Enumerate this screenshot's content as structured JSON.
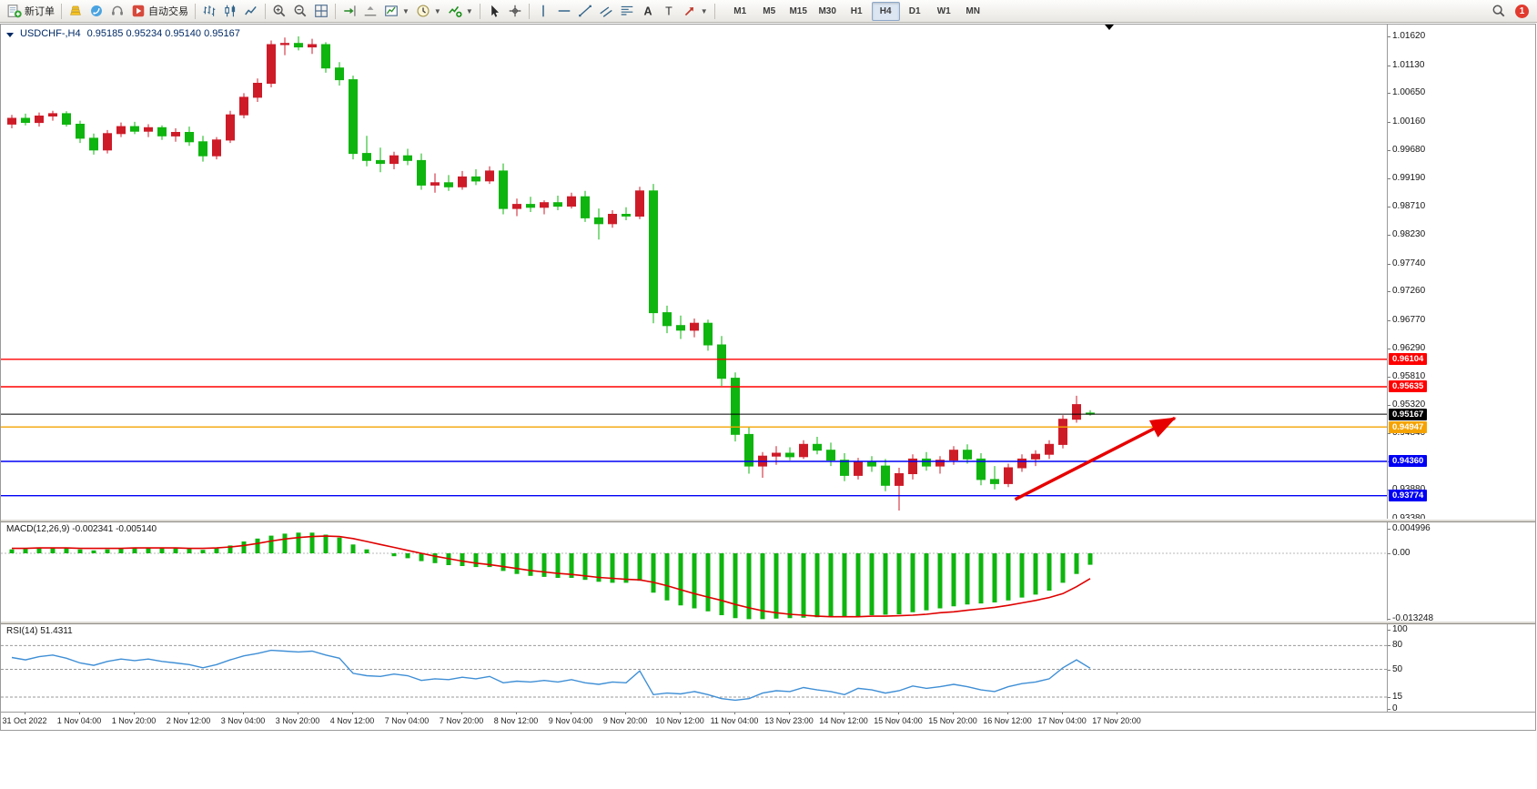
{
  "window": {
    "symbol": "USDCHF-,H4",
    "ohlc": "0.95185 0.95234 0.95140 0.95167"
  },
  "toolbar": {
    "buttons": [
      {
        "name": "new-order",
        "label": "新订单",
        "icon": "new-order-icon"
      },
      {
        "sep": true
      },
      {
        "name": "market",
        "icon": "market-icon"
      },
      {
        "name": "signals",
        "icon": "signals-icon"
      },
      {
        "name": "support",
        "icon": "support-icon"
      },
      {
        "name": "auto-trading",
        "label": "自动交易",
        "icon": "autotrading-icon"
      },
      {
        "sep": true
      },
      {
        "name": "bar-chart",
        "icon": "bar-chart-icon"
      },
      {
        "name": "candlestick-chart",
        "icon": "candlestick-icon"
      },
      {
        "name": "line-chart",
        "icon": "line-chart-icon"
      },
      {
        "sep": true
      },
      {
        "name": "zoom-in",
        "icon": "zoom-in-icon"
      },
      {
        "name": "zoom-out",
        "icon": "zoom-out-icon"
      },
      {
        "name": "tile-windows",
        "icon": "tile-windows-icon"
      },
      {
        "sep": true
      },
      {
        "name": "auto-scroll",
        "icon": "auto-scroll-icon"
      },
      {
        "name": "chart-shift",
        "icon": "chart-shift-icon"
      },
      {
        "name": "new-chart",
        "icon": "new-chart-icon",
        "dropdown": true
      },
      {
        "name": "timeframes-menu",
        "icon": "clock-icon",
        "dropdown": true
      },
      {
        "name": "indicators",
        "icon": "indicators-icon",
        "dropdown": true
      },
      {
        "sep": true
      },
      {
        "name": "cursor",
        "icon": "cursor-icon"
      },
      {
        "name": "crosshair",
        "icon": "crosshair-icon"
      },
      {
        "sep": true
      },
      {
        "name": "vertical-line",
        "icon": "vertical-line-icon"
      },
      {
        "name": "horizontal-line",
        "icon": "horizontal-line-icon"
      },
      {
        "name": "trendline",
        "icon": "trendline-icon"
      },
      {
        "name": "equidistant-channel",
        "icon": "channel-icon"
      },
      {
        "name": "fibonacci",
        "icon": "fibonacci-icon"
      },
      {
        "name": "text",
        "icon": "text-icon"
      },
      {
        "name": "text-label",
        "icon": "text-label-icon"
      },
      {
        "name": "arrows",
        "icon": "arrows-icon",
        "dropdown": true
      },
      {
        "sep": true
      }
    ],
    "timeframes": [
      "M1",
      "M5",
      "M15",
      "M30",
      "H1",
      "H4",
      "D1",
      "W1",
      "MN"
    ],
    "active_timeframe": "H4",
    "notification_count": "1"
  },
  "indicators": {
    "macd_label": "MACD(12,26,9) -0.002341 -0.005140",
    "rsi_label": "RSI(14) 51.4311"
  },
  "chart_data": {
    "type": "candlestick",
    "symbol": "USDCHF",
    "timeframe": "H4",
    "title": "USDCHF-,H4 0.95185 0.95234 0.95140 0.95167",
    "price_range": [
      0.9338,
      1.0162
    ],
    "up_color": "#ce1b28",
    "down_color": "#0eb50e",
    "candles": [
      [
        1.0012,
        1.0028,
        1.0005,
        1.0022
      ],
      [
        1.0022,
        1.003,
        1.001,
        1.0015
      ],
      [
        1.0015,
        1.0032,
        1.0008,
        1.0026
      ],
      [
        1.0026,
        1.0035,
        1.0018,
        1.003
      ],
      [
        1.003,
        1.0034,
        1.0008,
        1.0012
      ],
      [
        1.0012,
        1.0018,
        0.998,
        0.9988
      ],
      [
        0.9988,
        0.9996,
        0.996,
        0.9968
      ],
      [
        0.9968,
        1.0002,
        0.9962,
        0.9996
      ],
      [
        0.9996,
        1.0015,
        0.999,
        1.0008
      ],
      [
        1.0008,
        1.0016,
        0.9995,
        1.0
      ],
      [
        1.0,
        1.0012,
        0.999,
        1.0006
      ],
      [
        1.0006,
        1.001,
        0.9985,
        0.9992
      ],
      [
        0.9992,
        1.0005,
        0.9982,
        0.9998
      ],
      [
        0.9998,
        1.0008,
        0.9975,
        0.9982
      ],
      [
        0.9982,
        0.9992,
        0.9948,
        0.9958
      ],
      [
        0.9958,
        0.999,
        0.9952,
        0.9985
      ],
      [
        0.9985,
        1.0035,
        0.998,
        1.0028
      ],
      [
        1.0028,
        1.0065,
        1.0022,
        1.0058
      ],
      [
        1.0058,
        1.009,
        1.005,
        1.0082
      ],
      [
        1.0082,
        1.0155,
        1.0075,
        1.0148
      ],
      [
        1.0148,
        1.016,
        1.013,
        1.015
      ],
      [
        1.015,
        1.0162,
        1.0138,
        1.0144
      ],
      [
        1.0144,
        1.0158,
        1.0132,
        1.0148
      ],
      [
        1.0148,
        1.0152,
        1.01,
        1.0108
      ],
      [
        1.0108,
        1.0118,
        1.0078,
        1.0088
      ],
      [
        1.0088,
        1.0095,
        0.9952,
        0.9962
      ],
      [
        0.9962,
        0.9992,
        0.994,
        0.995
      ],
      [
        0.995,
        0.9972,
        0.993,
        0.9945
      ],
      [
        0.9945,
        0.9965,
        0.9935,
        0.9958
      ],
      [
        0.9958,
        0.997,
        0.9942,
        0.995
      ],
      [
        0.995,
        0.9962,
        0.99,
        0.9908
      ],
      [
        0.9908,
        0.9928,
        0.9895,
        0.9912
      ],
      [
        0.9912,
        0.9925,
        0.9898,
        0.9905
      ],
      [
        0.9905,
        0.9932,
        0.99,
        0.9922
      ],
      [
        0.9922,
        0.9935,
        0.9908,
        0.9915
      ],
      [
        0.9915,
        0.994,
        0.991,
        0.9932
      ],
      [
        0.9932,
        0.9945,
        0.9858,
        0.9868
      ],
      [
        0.9868,
        0.9885,
        0.9855,
        0.9875
      ],
      [
        0.9875,
        0.9888,
        0.9862,
        0.987
      ],
      [
        0.987,
        0.9882,
        0.9858,
        0.9878
      ],
      [
        0.9878,
        0.989,
        0.9865,
        0.9872
      ],
      [
        0.9872,
        0.9895,
        0.9868,
        0.9888
      ],
      [
        0.9888,
        0.9898,
        0.9845,
        0.9852
      ],
      [
        0.9852,
        0.9868,
        0.9815,
        0.9842
      ],
      [
        0.9842,
        0.9865,
        0.9835,
        0.9858
      ],
      [
        0.9858,
        0.987,
        0.9848,
        0.9855
      ],
      [
        0.9855,
        0.9905,
        0.985,
        0.9898
      ],
      [
        0.9898,
        0.991,
        0.9672,
        0.969
      ],
      [
        0.969,
        0.9702,
        0.9655,
        0.9668
      ],
      [
        0.9668,
        0.9685,
        0.9645,
        0.966
      ],
      [
        0.966,
        0.968,
        0.9648,
        0.9672
      ],
      [
        0.9672,
        0.9678,
        0.9625,
        0.9635
      ],
      [
        0.9635,
        0.965,
        0.9565,
        0.9578
      ],
      [
        0.9578,
        0.9588,
        0.947,
        0.9482
      ],
      [
        0.9482,
        0.9495,
        0.9415,
        0.9428
      ],
      [
        0.9428,
        0.9452,
        0.9408,
        0.9445
      ],
      [
        0.9445,
        0.9462,
        0.943,
        0.945
      ],
      [
        0.945,
        0.946,
        0.9438,
        0.9444
      ],
      [
        0.9444,
        0.9472,
        0.944,
        0.9465
      ],
      [
        0.9465,
        0.9478,
        0.9448,
        0.9455
      ],
      [
        0.9455,
        0.9468,
        0.9428,
        0.9438
      ],
      [
        0.9438,
        0.945,
        0.9402,
        0.9412
      ],
      [
        0.9412,
        0.9442,
        0.9405,
        0.9435
      ],
      [
        0.9435,
        0.9445,
        0.9418,
        0.9428
      ],
      [
        0.9428,
        0.944,
        0.9385,
        0.9395
      ],
      [
        0.9395,
        0.9425,
        0.9352,
        0.9415
      ],
      [
        0.9415,
        0.9448,
        0.9405,
        0.944
      ],
      [
        0.944,
        0.9452,
        0.942,
        0.9428
      ],
      [
        0.9428,
        0.9445,
        0.9415,
        0.9438
      ],
      [
        0.9438,
        0.9462,
        0.943,
        0.9455
      ],
      [
        0.9455,
        0.9465,
        0.9432,
        0.944
      ],
      [
        0.944,
        0.945,
        0.9395,
        0.9405
      ],
      [
        0.9405,
        0.9428,
        0.9388,
        0.9398
      ],
      [
        0.9398,
        0.9432,
        0.9392,
        0.9425
      ],
      [
        0.9425,
        0.9448,
        0.9418,
        0.944
      ],
      [
        0.944,
        0.9455,
        0.9428,
        0.9448
      ],
      [
        0.9448,
        0.9472,
        0.944,
        0.9465
      ],
      [
        0.9465,
        0.9515,
        0.9458,
        0.9508
      ],
      [
        0.9508,
        0.9548,
        0.9502,
        0.9533
      ],
      [
        0.95185,
        0.95234,
        0.9514,
        0.95167
      ]
    ],
    "hlines": [
      {
        "price": 0.96104,
        "label": "0.96104",
        "color": "#ff0000"
      },
      {
        "price": 0.95635,
        "label": "0.95635",
        "color": "#ff0000"
      },
      {
        "price": 0.95167,
        "label": "0.95167",
        "color": "#000000"
      },
      {
        "price": 0.94947,
        "label": "0.94947",
        "color": "#f5a300"
      },
      {
        "price": 0.9436,
        "label": "0.94360",
        "color": "#0000f5"
      },
      {
        "price": 0.93774,
        "label": "0.93774",
        "color": "#0000f5"
      }
    ],
    "arrow": {
      "from_index": 73.5,
      "from_price": 0.9371,
      "to_index": 85.2,
      "to_price": 0.951,
      "color": "#e60000"
    },
    "price_ticks": [
      "1.01620",
      "1.01130",
      "1.00650",
      "1.00160",
      "0.99680",
      "0.99190",
      "0.98710",
      "0.98230",
      "0.97740",
      "0.97260",
      "0.96770",
      "0.96290",
      "0.95810",
      "0.95320",
      "0.94840",
      "0.94360",
      "0.93880",
      "0.93380"
    ],
    "time_labels": [
      "31 Oct 2022",
      "1 Nov 04:00",
      "1 Nov 20:00",
      "2 Nov 12:00",
      "3 Nov 04:00",
      "3 Nov 20:00",
      "4 Nov 12:00",
      "7 Nov 04:00",
      "7 Nov 20:00",
      "8 Nov 12:00",
      "9 Nov 04:00",
      "9 Nov 20:00",
      "10 Nov 12:00",
      "11 Nov 04:00",
      "13 Nov 23:00",
      "14 Nov 12:00",
      "15 Nov 04:00",
      "15 Nov 20:00",
      "16 Nov 12:00",
      "17 Nov 04:00",
      "17 Nov 20:00"
    ],
    "macd": {
      "label": "MACD(12,26,9)",
      "values_text": "-0.002341 -0.005140",
      "axis_labels": [
        "0.004996",
        "0.00",
        "-0.013248"
      ],
      "histogram_color": "#0eb50e",
      "signal_color": "#e00000",
      "histogram": [
        0.0008,
        0.0009,
        0.001,
        0.0012,
        0.0011,
        0.0008,
        0.0006,
        0.0008,
        0.001,
        0.0011,
        0.0012,
        0.0011,
        0.001,
        0.0009,
        0.0007,
        0.001,
        0.0016,
        0.0024,
        0.003,
        0.0036,
        0.004,
        0.0042,
        0.0042,
        0.0038,
        0.0032,
        0.0018,
        0.0008,
        0.0,
        -0.0006,
        -0.001,
        -0.0016,
        -0.002,
        -0.0024,
        -0.0026,
        -0.0028,
        -0.0028,
        -0.0036,
        -0.0042,
        -0.0046,
        -0.0048,
        -0.005,
        -0.005,
        -0.0054,
        -0.0058,
        -0.006,
        -0.006,
        -0.0056,
        -0.008,
        -0.0096,
        -0.0106,
        -0.0112,
        -0.0118,
        -0.0126,
        -0.0132,
        -0.0134,
        -0.0134,
        -0.0133,
        -0.0132,
        -0.0131,
        -0.013,
        -0.0129,
        -0.0129,
        -0.0128,
        -0.0126,
        -0.0125,
        -0.0124,
        -0.012,
        -0.0116,
        -0.0112,
        -0.0108,
        -0.0104,
        -0.0102,
        -0.01,
        -0.0096,
        -0.009,
        -0.0084,
        -0.0076,
        -0.006,
        -0.0042,
        -0.002341
      ],
      "signal": [
        0.001,
        0.001,
        0.0011,
        0.0011,
        0.0011,
        0.001,
        0.001,
        0.001,
        0.001,
        0.0011,
        0.0011,
        0.0011,
        0.0011,
        0.001,
        0.001,
        0.0011,
        0.0013,
        0.0016,
        0.002,
        0.0025,
        0.0029,
        0.0032,
        0.0034,
        0.0035,
        0.0034,
        0.003,
        0.0024,
        0.0018,
        0.0012,
        0.0006,
        0.0,
        -0.0006,
        -0.0011,
        -0.0016,
        -0.002,
        -0.0023,
        -0.0027,
        -0.0031,
        -0.0035,
        -0.0038,
        -0.0041,
        -0.0043,
        -0.0046,
        -0.0049,
        -0.0051,
        -0.0053,
        -0.0054,
        -0.0059,
        -0.0066,
        -0.0074,
        -0.0082,
        -0.0089,
        -0.0096,
        -0.0104,
        -0.0111,
        -0.0117,
        -0.0121,
        -0.0124,
        -0.0126,
        -0.0128,
        -0.0129,
        -0.0129,
        -0.0129,
        -0.0128,
        -0.0128,
        -0.0127,
        -0.0126,
        -0.0124,
        -0.0121,
        -0.0119,
        -0.0116,
        -0.0113,
        -0.011,
        -0.0106,
        -0.0101,
        -0.0096,
        -0.009,
        -0.0082,
        -0.0068,
        -0.00514
      ]
    },
    "rsi": {
      "label": "RSI(14)",
      "value_text": "51.4311",
      "axis_labels": [
        "100",
        "80",
        "50",
        "15",
        "0"
      ],
      "levels": [
        80,
        50,
        15
      ],
      "line_color": "#3f8fd6",
      "values": [
        65,
        62,
        66,
        68,
        64,
        58,
        55,
        60,
        63,
        61,
        63,
        60,
        58,
        56,
        52,
        56,
        62,
        67,
        70,
        74,
        73,
        72,
        73,
        68,
        64,
        45,
        42,
        41,
        44,
        42,
        36,
        38,
        37,
        40,
        38,
        41,
        33,
        35,
        34,
        36,
        34,
        37,
        33,
        31,
        34,
        33,
        48,
        18,
        20,
        19,
        22,
        18,
        13,
        11,
        13,
        20,
        23,
        22,
        27,
        24,
        22,
        18,
        26,
        24,
        20,
        23,
        29,
        26,
        28,
        31,
        28,
        24,
        22,
        28,
        32,
        34,
        38,
        52,
        62,
        51.43
      ]
    }
  }
}
